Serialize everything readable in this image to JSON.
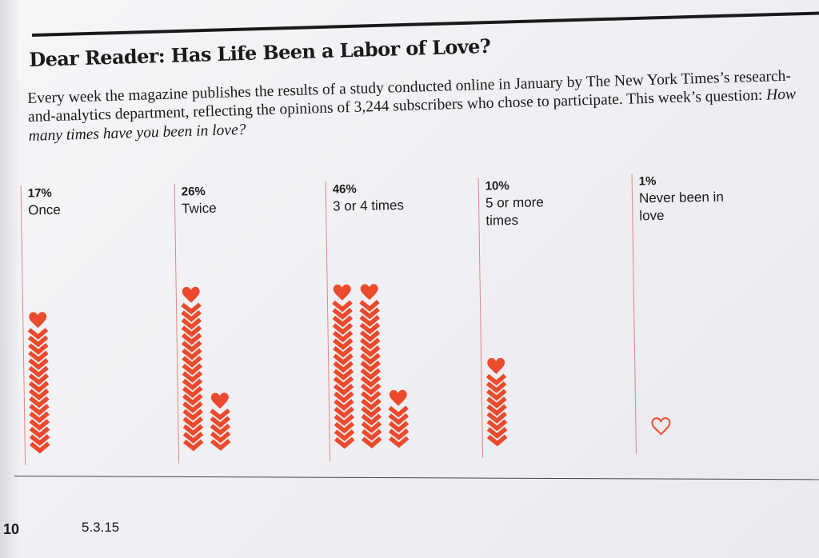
{
  "headline": "Dear Reader: Has Life Been a Labor of Love?",
  "intro": {
    "text": "Every week the magazine publishes the results of a study conducted online in January by The New York Times’s research-and-analytics department, reflecting the opinions of 3,244 subscribers who chose to participate. This week’s question: ",
    "question": "How many times have you been in love?"
  },
  "footer": {
    "page_number": "10",
    "date": "5.3.15"
  },
  "colors": {
    "heart": "#ec4a2d",
    "rule": "#e2877a",
    "text": "#1a1a1a"
  },
  "chart_data": {
    "type": "bar",
    "unit": "percent",
    "encoding": "each heart = 1%",
    "categories": [
      {
        "pct_label": "17%",
        "label": "Once",
        "value": 17
      },
      {
        "pct_label": "26%",
        "label": "Twice",
        "value": 26
      },
      {
        "pct_label": "46%",
        "label": "3 or 4 times",
        "value": 46
      },
      {
        "pct_label": "10%",
        "label": "5 or more times",
        "value": 10
      },
      {
        "pct_label": "1%",
        "label": "Never been in love",
        "value": 1,
        "style": "outline"
      }
    ]
  }
}
